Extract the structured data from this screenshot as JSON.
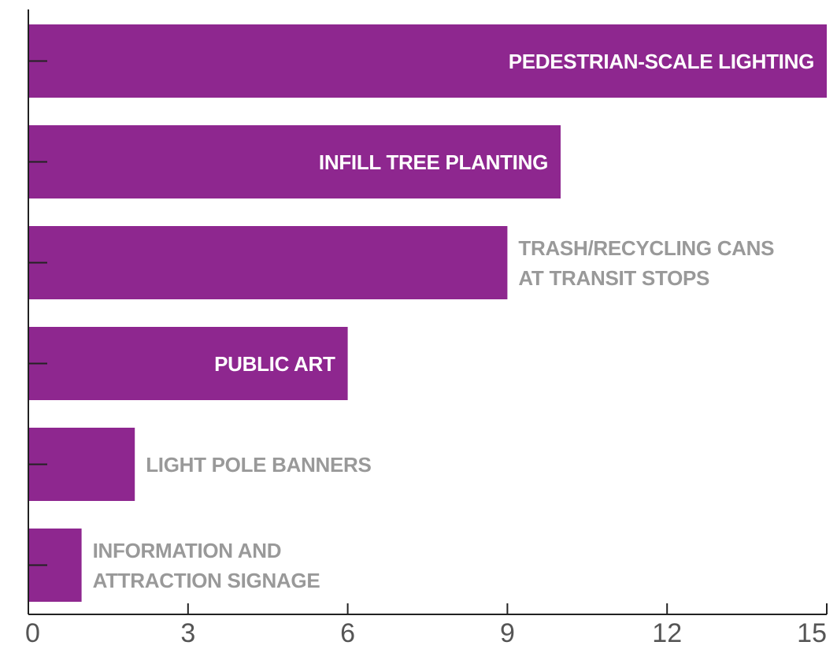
{
  "chart_data": {
    "type": "bar",
    "orientation": "horizontal",
    "categories": [
      "PEDESTRIAN-SCALE LIGHTING",
      "INFILL TREE PLANTING",
      "TRASH/RECYCLING CANS AT TRANSIT STOPS",
      "PUBLIC ART",
      "LIGHT POLE BANNERS",
      "INFORMATION AND ATTRACTION SIGNAGE"
    ],
    "values": [
      15,
      10,
      9,
      6,
      2,
      1
    ],
    "color": "#8e278f",
    "xlim": [
      0,
      15
    ],
    "xticks": [
      0,
      3,
      6,
      9,
      12,
      15
    ]
  }
}
